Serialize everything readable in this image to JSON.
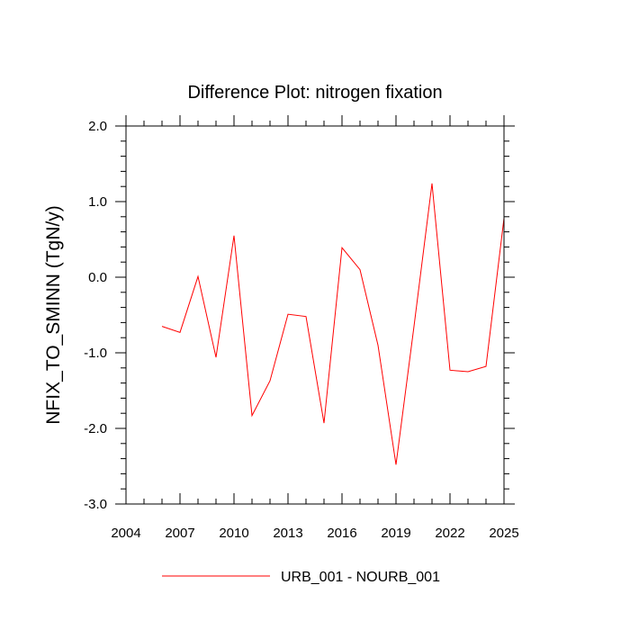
{
  "chart_data": {
    "type": "line",
    "title": "Difference Plot: nitrogen fixation",
    "ylabel": "NFIX_TO_SMINN  (TgN/y)",
    "xlabel": "",
    "xlim": [
      2004,
      2025
    ],
    "ylim": [
      -3.0,
      2.0
    ],
    "x_ticks": [
      2004,
      2007,
      2010,
      2013,
      2016,
      2019,
      2022,
      2025
    ],
    "x_tick_labels": [
      "2004",
      "2007",
      "2010",
      "2013",
      "2016",
      "2019",
      "2022",
      "2025"
    ],
    "y_ticks": [
      -3.0,
      -2.0,
      -1.0,
      0.0,
      1.0,
      2.0
    ],
    "y_tick_labels": [
      "-3.0",
      "-2.0",
      "-1.0",
      "0.0",
      "1.0",
      "2.0"
    ],
    "grid": false,
    "legend_position": "bottom-center",
    "series": [
      {
        "name": "URB_001 - NOURB_001",
        "color": "#ff0000",
        "x": [
          2006,
          2007,
          2008,
          2009,
          2010,
          2011,
          2012,
          2013,
          2014,
          2015,
          2016,
          2017,
          2018,
          2019,
          2020,
          2021,
          2022,
          2023,
          2024,
          2025
        ],
        "y": [
          -0.65,
          -0.73,
          0.01,
          -1.06,
          0.55,
          -1.83,
          -1.37,
          -0.49,
          -0.52,
          -1.93,
          0.39,
          0.1,
          -0.9,
          -2.48,
          -0.65,
          1.24,
          -1.23,
          -1.25,
          -1.18,
          0.78
        ]
      }
    ]
  }
}
